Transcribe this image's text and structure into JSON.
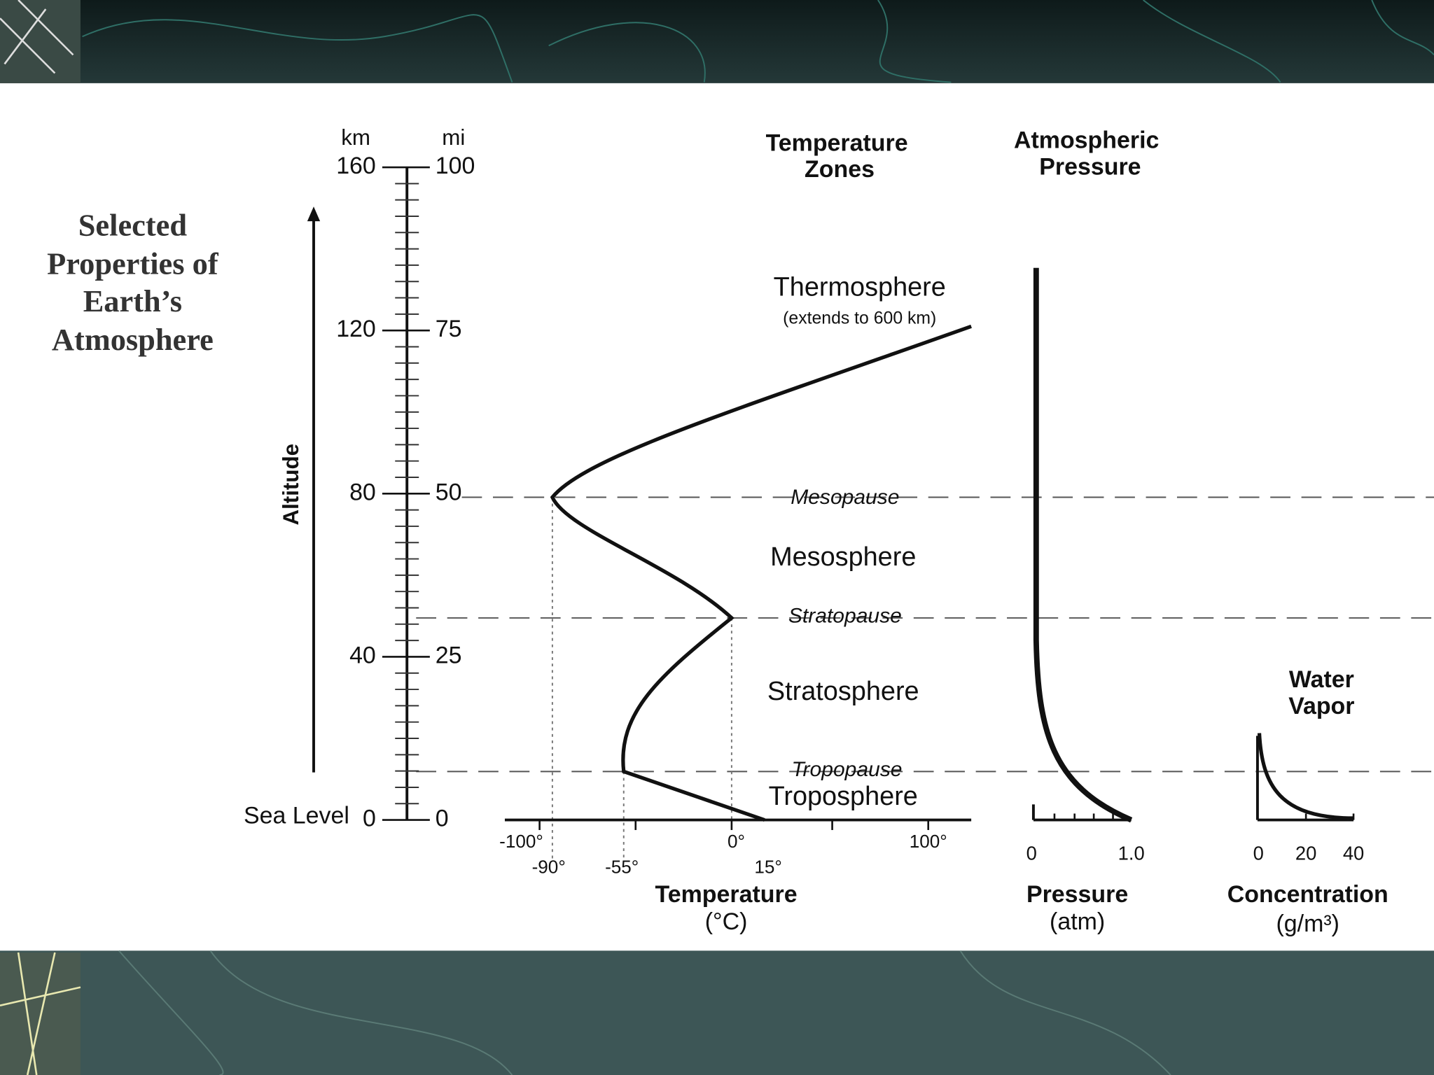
{
  "title": [
    "Selected",
    "Properties of",
    "Earth’s",
    "Atmosphere"
  ],
  "altitude": {
    "label": "Altitude",
    "km_unit": "km",
    "mi_unit": "mi",
    "km_ticks": [
      "160",
      "120",
      "80",
      "40",
      "0"
    ],
    "mi_ticks": [
      "100",
      "75",
      "50",
      "25",
      "0"
    ],
    "sea_level": "Sea Level"
  },
  "zones": {
    "header": [
      "Temperature",
      "Zones"
    ],
    "thermosphere": "Thermosphere",
    "thermosphere_note": "(extends to 600 km)",
    "mesopause": "Mesopause",
    "mesosphere": "Mesosphere",
    "stratopause": "Stratopause",
    "stratosphere": "Stratosphere",
    "tropopause": "Tropopause",
    "troposphere": "Troposphere"
  },
  "temperature": {
    "ticks_top": [
      "-100°",
      "0°",
      "100°"
    ],
    "ticks_bottom": [
      "-90°",
      "-55°",
      "15°"
    ],
    "label": [
      "Temperature",
      "(°C)"
    ]
  },
  "pressure": {
    "header": [
      "Atmospheric",
      "Pressure"
    ],
    "ticks": [
      "0",
      "1.0"
    ],
    "label": [
      "Pressure",
      "(atm)"
    ]
  },
  "water_vapor": {
    "header": [
      "Water",
      "Vapor"
    ],
    "ticks": [
      "0",
      "20",
      "40"
    ],
    "label": [
      "Concentration",
      "(g/m³)"
    ]
  }
}
